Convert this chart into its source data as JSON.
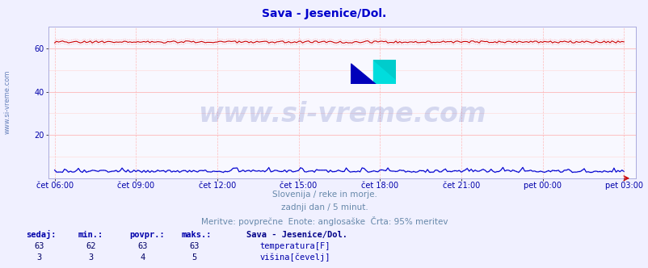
{
  "title": "Sava - Jesenice/Dol.",
  "title_color": "#0000cc",
  "title_fontsize": 10,
  "background_color": "#f0f0ff",
  "plot_bg_color": "#f8f8ff",
  "grid_color_major": "#ffaaaa",
  "grid_color_minor": "#ffdddd",
  "ylim": [
    0,
    70
  ],
  "yticks": [
    20,
    40,
    60
  ],
  "xtick_labels": [
    "čet 06:00",
    "čet 09:00",
    "čet 12:00",
    "čet 15:00",
    "čet 18:00",
    "čet 21:00",
    "pet 00:00",
    "pet 03:00"
  ],
  "n_points": 288,
  "temp_value": 63.0,
  "visina_value": 3.0,
  "temp_color": "#cc0000",
  "visina_color": "#0000cc",
  "dotted_color_temp": "#ff8888",
  "dotted_color_visina": "#8888ff",
  "subtitle1": "Slovenija / reke in morje.",
  "subtitle2": "zadnji dan / 5 minut.",
  "subtitle3": "Meritve: povprečne  Enote: anglosaške  Črta: 95% meritev",
  "subtitle_color": "#6688aa",
  "subtitle_fontsize": 7.5,
  "watermark": "www.si-vreme.com",
  "watermark_color": "#3344aa",
  "watermark_alpha": 0.18,
  "watermark_fontsize": 24,
  "sidebar_text": "www.si-vreme.com",
  "sidebar_color": "#4466aa",
  "sidebar_fontsize": 6,
  "legend_header": "Sava - Jesenice/Dol.",
  "legend_header_color": "#000088",
  "legend_col_headers": [
    "sedaj:",
    "min.:",
    "povpr.:",
    "maks.:"
  ],
  "legend_temp_vals": [
    "63",
    "62",
    "63",
    "63"
  ],
  "legend_visina_vals": [
    "3",
    "3",
    "4",
    "5"
  ],
  "legend_label_temp": "temperatura[F]",
  "legend_label_visina": "višina[čevelj]",
  "legend_text_color": "#0000aa",
  "legend_val_color": "#000066",
  "border_color": "#aaaadd"
}
